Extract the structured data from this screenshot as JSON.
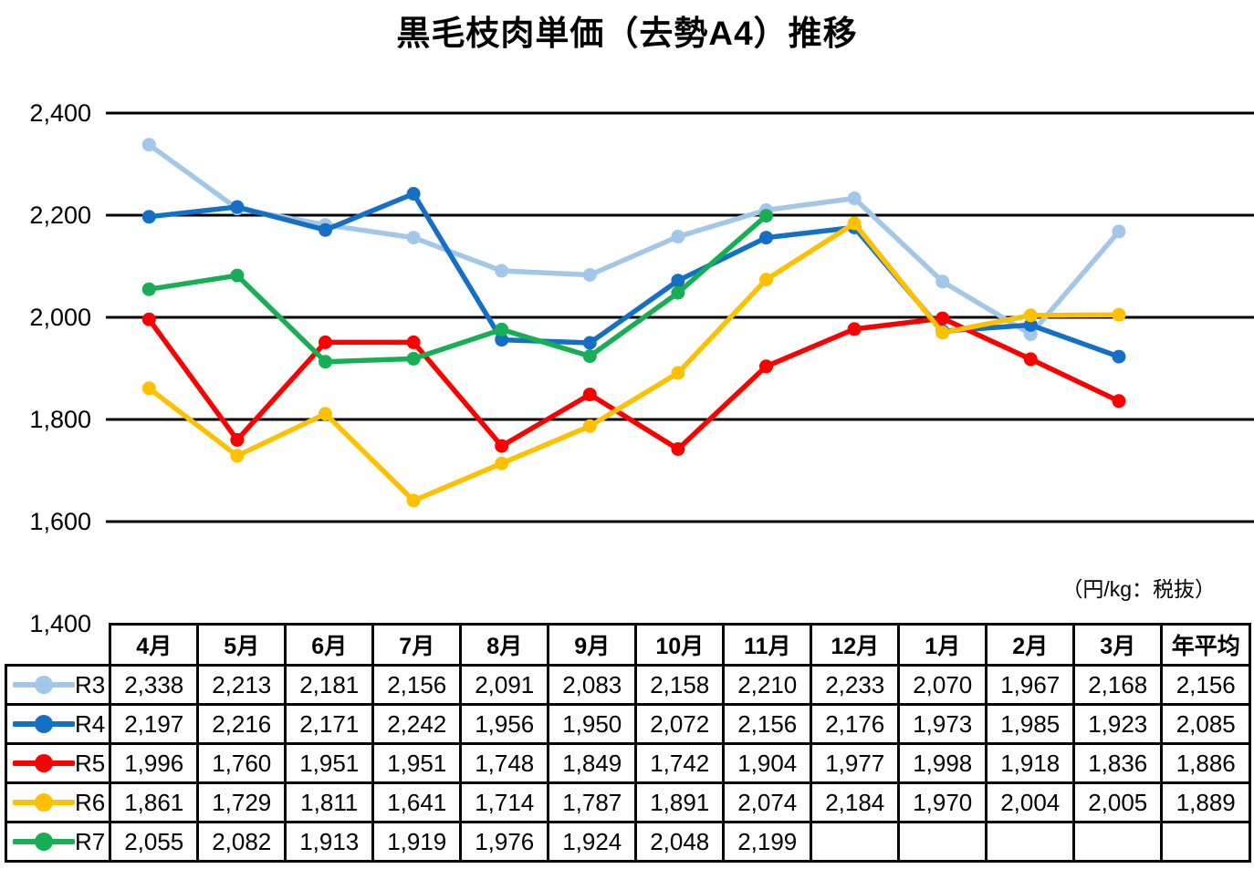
{
  "chart_data": {
    "type": "line",
    "title": "黒毛枝肉単価（去勢A4）推移",
    "unit_label": "（円/kg：税抜）",
    "categories": [
      "4月",
      "5月",
      "6月",
      "7月",
      "8月",
      "9月",
      "10月",
      "11月",
      "12月",
      "1月",
      "2月",
      "3月"
    ],
    "average_column_label": "年平均",
    "ylim": [
      1400,
      2400
    ],
    "ytick_interval": 200,
    "ytick_labels": [
      "2,400",
      "2,200",
      "2,000",
      "1,800",
      "1,600",
      "1,400"
    ],
    "grid": true,
    "gridline_color": "#000000",
    "legend_position": "table-row-headers",
    "series": [
      {
        "name": "R3",
        "color": "#A2C7E9",
        "values": [
          2338,
          2213,
          2181,
          2156,
          2091,
          2083,
          2158,
          2210,
          2233,
          2070,
          1967,
          2168
        ],
        "average": 2156
      },
      {
        "name": "R4",
        "color": "#1470C4",
        "values": [
          2197,
          2216,
          2171,
          2242,
          1956,
          1950,
          2072,
          2156,
          2176,
          1973,
          1985,
          1923
        ],
        "average": 2085
      },
      {
        "name": "R5",
        "color": "#FC0000",
        "values": [
          1996,
          1760,
          1951,
          1951,
          1748,
          1849,
          1742,
          1904,
          1977,
          1998,
          1918,
          1836
        ],
        "average": 1886
      },
      {
        "name": "R6",
        "color": "#FFC000",
        "values": [
          1861,
          1729,
          1811,
          1641,
          1714,
          1787,
          1891,
          2074,
          2184,
          1970,
          2004,
          2005
        ],
        "average": 1889
      },
      {
        "name": "R7",
        "color": "#17AE54",
        "values": [
          2055,
          2082,
          1913,
          1919,
          1976,
          1924,
          2048,
          2199,
          null,
          null,
          null,
          null
        ],
        "average": null
      }
    ]
  }
}
